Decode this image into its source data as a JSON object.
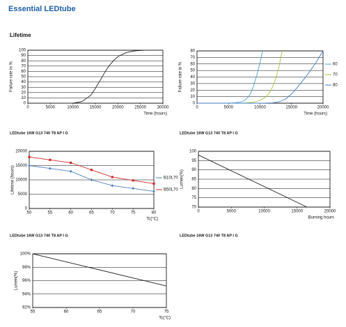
{
  "header": {
    "title": "Essential LEDtube",
    "section": "Lifetime",
    "subheadings": [
      "LEDtube 16W G13 740 T8 AP I G"
    ]
  },
  "chart_data": [
    {
      "type": "line",
      "xlabel": "Time (hours)",
      "ylabel": "Failure rate in %",
      "x": [
        0,
        10000,
        12000,
        14000,
        15000,
        16000,
        17000,
        18000,
        19000,
        20000,
        22000,
        24000,
        26000,
        30000
      ],
      "values": [
        0,
        0,
        3,
        15,
        28,
        42,
        57,
        70,
        80,
        88,
        96,
        99,
        100,
        100
      ],
      "color": "#222222",
      "xlim": [
        0,
        30000
      ],
      "xticks": [
        0,
        5000,
        10000,
        15000,
        20000,
        25000,
        30000
      ],
      "ylim": [
        0,
        100
      ],
      "yticks": [
        0,
        10,
        20,
        30,
        40,
        50,
        60,
        70,
        80,
        90,
        100
      ],
      "grid": true
    },
    {
      "type": "line",
      "xlabel": "Time (hours)",
      "ylabel": "Failure rate in %",
      "legend": "right",
      "series": [
        {
          "name": "60",
          "color": "#4aa3c8",
          "x": [
            0,
            5000,
            6000,
            7000,
            7500,
            8000,
            8500,
            9000,
            9500,
            10000,
            10400
          ],
          "values": [
            0,
            0,
            0.5,
            2,
            4,
            8,
            15,
            27,
            43,
            62,
            80
          ]
        },
        {
          "name": "70",
          "color": "#a9c23c",
          "x": [
            0,
            7000,
            8000,
            9000,
            10000,
            11000,
            11500,
            12000,
            12500,
            13000,
            13500
          ],
          "values": [
            0,
            0,
            0.5,
            1.5,
            4,
            10,
            16,
            25,
            38,
            55,
            80
          ]
        },
        {
          "name": "80",
          "color": "#3f7fc4",
          "x": [
            0,
            10000,
            12000,
            13000,
            14000,
            15000,
            16000,
            17000,
            18000,
            19000,
            20000
          ],
          "values": [
            0,
            0,
            0.5,
            2,
            6,
            14,
            25,
            37,
            50,
            64,
            80
          ]
        }
      ],
      "xlim": [
        0,
        20000
      ],
      "xticks": [
        0,
        5000,
        10000,
        15000,
        20000
      ],
      "ylim": [
        0,
        80
      ],
      "yticks": [
        0,
        10,
        20,
        30,
        40,
        50,
        60,
        70,
        80
      ],
      "grid": true
    },
    {
      "type": "line",
      "title": "LEDtube 16W G13 740 T8 AP I G",
      "xlabel": "Tc(°C)",
      "ylabel": "Lifetime (hours)",
      "legend": "right",
      "series": [
        {
          "name": "B10L70",
          "color": "#4f7fbf",
          "marker": "diamond",
          "x": [
            50,
            55,
            60,
            65,
            70,
            75,
            80
          ],
          "values": [
            15000,
            14000,
            13000,
            10000,
            8000,
            7000,
            6000
          ]
        },
        {
          "name": "B50L70",
          "color": "#d12b2b",
          "marker": "square",
          "x": [
            50,
            55,
            60,
            65,
            70,
            75,
            80
          ],
          "values": [
            18000,
            17000,
            16000,
            13500,
            11000,
            9800,
            8700
          ]
        }
      ],
      "xlim": [
        50,
        80
      ],
      "xticks": [
        50,
        55,
        60,
        65,
        70,
        75,
        80
      ],
      "ylim": [
        0,
        20000
      ],
      "yticks": [
        0,
        5000,
        10000,
        15000,
        20000
      ],
      "grid": true
    },
    {
      "type": "line",
      "title": "LEDtube 16W G13 740 T8 AP I G",
      "xlabel": "Burning hours",
      "ylabel": "Lumen(%)",
      "x": [
        0,
        16500
      ],
      "values": [
        98,
        70
      ],
      "color": "#222222",
      "xlim": [
        0,
        20000
      ],
      "xticks": [
        0,
        5000,
        10000,
        15000,
        20000
      ],
      "ylim": [
        70,
        100
      ],
      "yticks": [
        70,
        75,
        80,
        85,
        90,
        95,
        100
      ],
      "grid": true
    },
    {
      "type": "line",
      "title": "LEDtube 16W G13 740 T8 AP I G",
      "xlabel": "Tc(°C)",
      "ylabel": "Lumen(%)",
      "x": [
        55,
        75
      ],
      "values": [
        100,
        95.2
      ],
      "color": "#222222",
      "xlim": [
        55,
        75
      ],
      "xticks": [
        55,
        60,
        65,
        70,
        75
      ],
      "ylim": [
        92,
        100
      ],
      "yticks": [
        {
          "value": 92,
          "label": "92%"
        },
        {
          "value": 94,
          "label": "94%"
        },
        {
          "value": 96,
          "label": "96%"
        },
        {
          "value": 98,
          "label": "98%"
        },
        {
          "value": 100,
          "label": "100%"
        }
      ],
      "grid": true
    }
  ]
}
